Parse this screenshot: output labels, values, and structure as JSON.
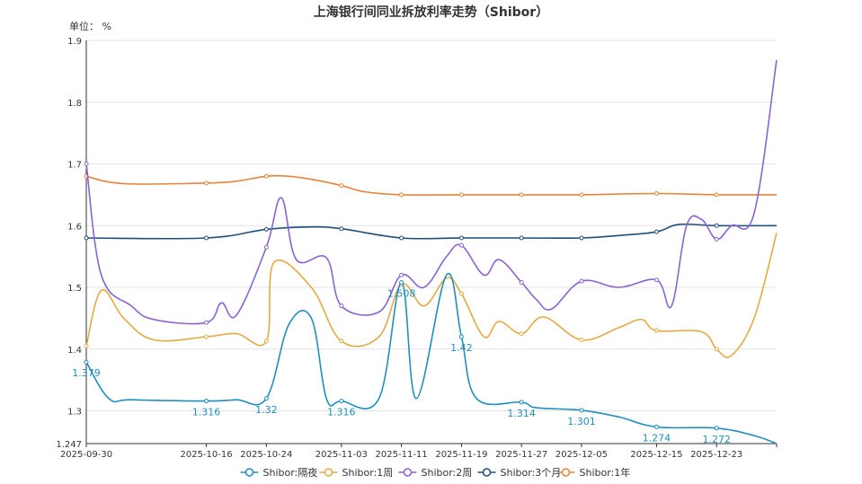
{
  "chart_data": {
    "type": "line",
    "title": "上海银行间同业拆放利率走势（Shibor）",
    "unit_label": "单位： %",
    "ylim": [
      1.247,
      1.9
    ],
    "y_ticks": [
      "1.247",
      "1.3",
      "1.4",
      "1.5",
      "1.6",
      "1.7",
      "1.8",
      "1.9"
    ],
    "x_ticks": [
      "2025-09-30",
      "2025-10-16",
      "2025-10-24",
      "2025-11-03",
      "2025-11-11",
      "2025-11-19",
      "2025-11-27",
      "2025-12-05",
      "2025-12-15",
      "2025-12-23"
    ],
    "grid": "horizontal",
    "legend_position": "bottom-center",
    "series": [
      {
        "name": "Shibor:隔夜",
        "color": "#1f8fbf",
        "points": [
          [
            "2025-09-30",
            1.379
          ],
          [
            "2025-10-03",
            1.32
          ],
          [
            "2025-10-06",
            1.318
          ],
          [
            "2025-10-16",
            1.316
          ],
          [
            "2025-10-20",
            1.318
          ],
          [
            "2025-10-24",
            1.32
          ],
          [
            "2025-10-27",
            1.44
          ],
          [
            "2025-10-30",
            1.45
          ],
          [
            "2025-11-01",
            1.32
          ],
          [
            "2025-11-03",
            1.316
          ],
          [
            "2025-11-08",
            1.32
          ],
          [
            "2025-11-11",
            1.508
          ],
          [
            "2025-11-13",
            1.32
          ],
          [
            "2025-11-17",
            1.52
          ],
          [
            "2025-11-19",
            1.42
          ],
          [
            "2025-11-21",
            1.32
          ],
          [
            "2025-11-27",
            1.314
          ],
          [
            "2025-11-29",
            1.305
          ],
          [
            "2025-12-05",
            1.301
          ],
          [
            "2025-12-10",
            1.29
          ],
          [
            "2025-12-15",
            1.274
          ],
          [
            "2025-12-23",
            1.272
          ],
          [
            "2025-12-28",
            1.26
          ],
          [
            "2025-12-31",
            1.247
          ]
        ],
        "labels": [
          [
            "2025-09-30",
            1.379,
            "1.379"
          ],
          [
            "2025-10-16",
            1.316,
            "1.316"
          ],
          [
            "2025-10-24",
            1.32,
            "1.32"
          ],
          [
            "2025-11-03",
            1.316,
            "1.316"
          ],
          [
            "2025-11-11",
            1.508,
            "1.508"
          ],
          [
            "2025-11-19",
            1.42,
            "1.42"
          ],
          [
            "2025-11-27",
            1.314,
            "1.314"
          ],
          [
            "2025-12-05",
            1.301,
            "1.301"
          ],
          [
            "2025-12-15",
            1.274,
            "1.274"
          ],
          [
            "2025-12-23",
            1.272,
            "1.272"
          ]
        ]
      },
      {
        "name": "Shibor:1周",
        "color": "#e6aa45",
        "points": [
          [
            "2025-09-30",
            1.405
          ],
          [
            "2025-10-02",
            1.495
          ],
          [
            "2025-10-05",
            1.45
          ],
          [
            "2025-10-09",
            1.415
          ],
          [
            "2025-10-16",
            1.42
          ],
          [
            "2025-10-20",
            1.425
          ],
          [
            "2025-10-24",
            1.413
          ],
          [
            "2025-10-25",
            1.54
          ],
          [
            "2025-10-30",
            1.5
          ],
          [
            "2025-11-03",
            1.413
          ],
          [
            "2025-11-08",
            1.42
          ],
          [
            "2025-11-11",
            1.505
          ],
          [
            "2025-11-14",
            1.47
          ],
          [
            "2025-11-17",
            1.515
          ],
          [
            "2025-11-19",
            1.49
          ],
          [
            "2025-11-22",
            1.42
          ],
          [
            "2025-11-24",
            1.445
          ],
          [
            "2025-11-27",
            1.425
          ],
          [
            "2025-11-30",
            1.452
          ],
          [
            "2025-12-05",
            1.415
          ],
          [
            "2025-12-10",
            1.435
          ],
          [
            "2025-12-13",
            1.448
          ],
          [
            "2025-12-15",
            1.43
          ],
          [
            "2025-12-21",
            1.428
          ],
          [
            "2025-12-23",
            1.4
          ],
          [
            "2025-12-25",
            1.39
          ],
          [
            "2025-12-28",
            1.45
          ],
          [
            "2025-12-31",
            1.588
          ]
        ]
      },
      {
        "name": "Shibor:2周",
        "color": "#8a63d2",
        "points": [
          [
            "2025-09-30",
            1.7
          ],
          [
            "2025-10-02",
            1.52
          ],
          [
            "2025-10-06",
            1.47
          ],
          [
            "2025-10-09",
            1.448
          ],
          [
            "2025-10-16",
            1.443
          ],
          [
            "2025-10-18",
            1.475
          ],
          [
            "2025-10-20",
            1.455
          ],
          [
            "2025-10-24",
            1.565
          ],
          [
            "2025-10-26",
            1.645
          ],
          [
            "2025-10-28",
            1.545
          ],
          [
            "2025-11-01",
            1.548
          ],
          [
            "2025-11-03",
            1.47
          ],
          [
            "2025-11-08",
            1.46
          ],
          [
            "2025-11-11",
            1.52
          ],
          [
            "2025-11-14",
            1.5
          ],
          [
            "2025-11-17",
            1.55
          ],
          [
            "2025-11-19",
            1.568
          ],
          [
            "2025-11-22",
            1.52
          ],
          [
            "2025-11-24",
            1.545
          ],
          [
            "2025-11-27",
            1.508
          ],
          [
            "2025-11-29",
            1.48
          ],
          [
            "2025-12-01",
            1.465
          ],
          [
            "2025-12-05",
            1.51
          ],
          [
            "2025-12-10",
            1.5
          ],
          [
            "2025-12-15",
            1.512
          ],
          [
            "2025-12-17",
            1.47
          ],
          [
            "2025-12-19",
            1.6
          ],
          [
            "2025-12-21",
            1.61
          ],
          [
            "2025-12-23",
            1.578
          ],
          [
            "2025-12-25",
            1.6
          ],
          [
            "2025-12-28",
            1.62
          ],
          [
            "2025-12-31",
            1.868
          ]
        ]
      },
      {
        "name": "Shibor:3个月",
        "color": "#1f4e79",
        "points": [
          [
            "2025-09-30",
            1.58
          ],
          [
            "2025-10-16",
            1.58
          ],
          [
            "2025-10-24",
            1.594
          ],
          [
            "2025-10-30",
            1.598
          ],
          [
            "2025-11-03",
            1.595
          ],
          [
            "2025-11-11",
            1.58
          ],
          [
            "2025-11-19",
            1.58
          ],
          [
            "2025-11-27",
            1.58
          ],
          [
            "2025-12-05",
            1.58
          ],
          [
            "2025-12-10",
            1.584
          ],
          [
            "2025-12-15",
            1.59
          ],
          [
            "2025-12-18",
            1.602
          ],
          [
            "2025-12-23",
            1.6
          ],
          [
            "2025-12-31",
            1.6
          ]
        ]
      },
      {
        "name": "Shibor:1年",
        "color": "#e8833a",
        "points": [
          [
            "2025-09-30",
            1.68
          ],
          [
            "2025-10-05",
            1.668
          ],
          [
            "2025-10-16",
            1.669
          ],
          [
            "2025-10-20",
            1.672
          ],
          [
            "2025-10-24",
            1.68
          ],
          [
            "2025-10-27",
            1.68
          ],
          [
            "2025-10-30",
            1.675
          ],
          [
            "2025-11-03",
            1.665
          ],
          [
            "2025-11-06",
            1.655
          ],
          [
            "2025-11-11",
            1.65
          ],
          [
            "2025-11-19",
            1.65
          ],
          [
            "2025-11-27",
            1.65
          ],
          [
            "2025-12-05",
            1.65
          ],
          [
            "2025-12-15",
            1.652
          ],
          [
            "2025-12-23",
            1.65
          ],
          [
            "2025-12-31",
            1.65
          ]
        ]
      }
    ]
  }
}
